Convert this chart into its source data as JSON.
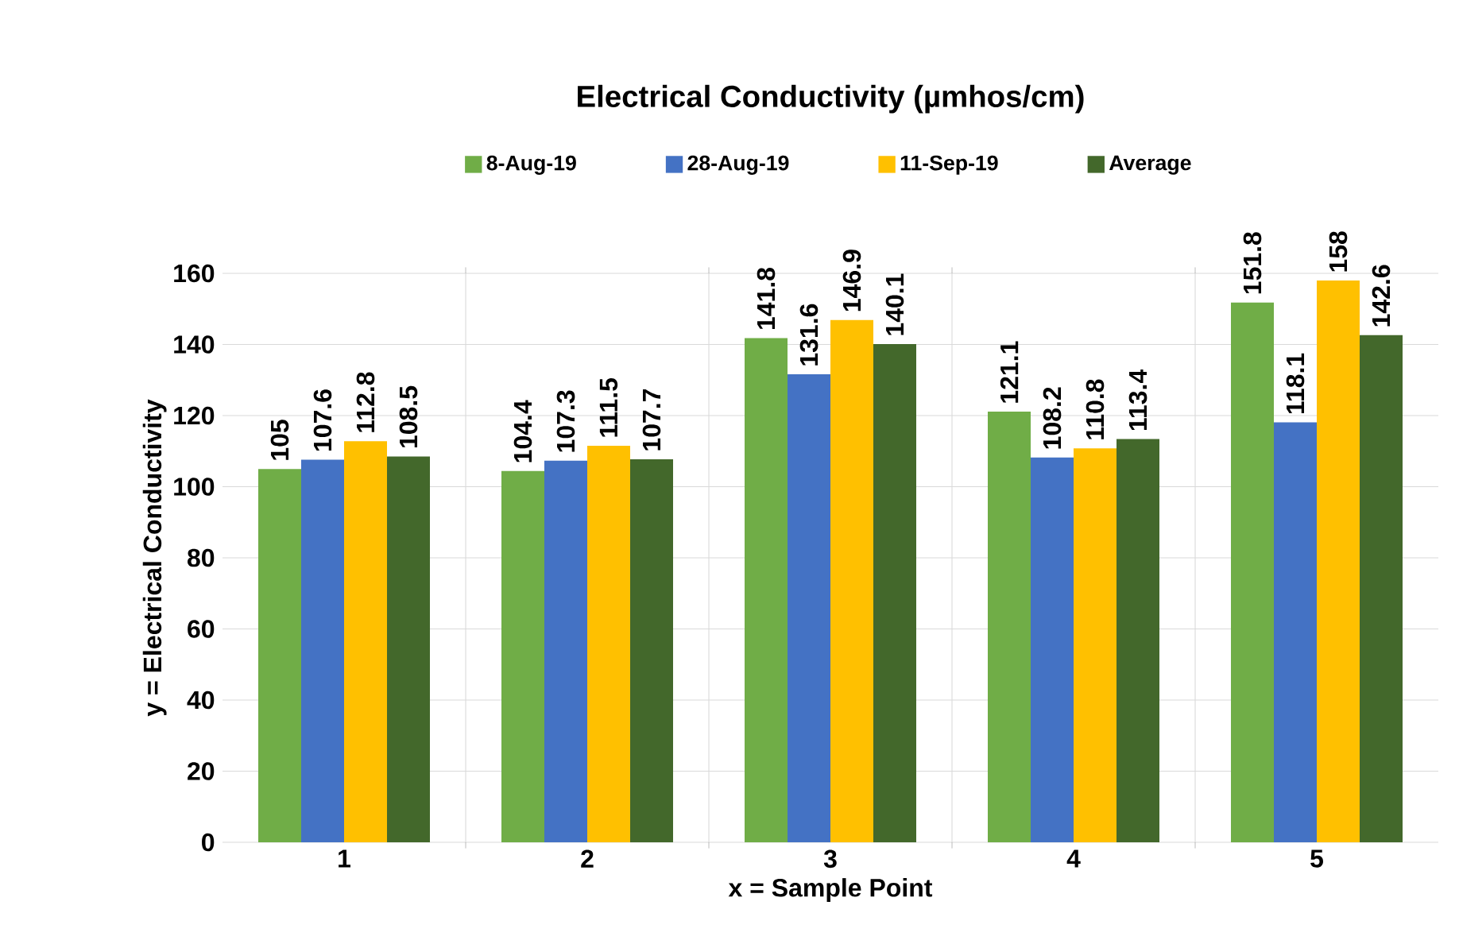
{
  "chart_data": {
    "type": "bar",
    "title": "Electrical Conductivity (µmhos/cm)",
    "xlabel": "x = Sample Point",
    "ylabel": "y = Electrical Conductivity",
    "categories": [
      "1",
      "2",
      "3",
      "4",
      "5"
    ],
    "series": [
      {
        "name": "8-Aug-19",
        "color": "#70ad47",
        "values": [
          105,
          104.4,
          141.8,
          121.1,
          151.8
        ]
      },
      {
        "name": "28-Aug-19",
        "color": "#4472c4",
        "values": [
          107.6,
          107.3,
          131.6,
          108.2,
          118.1
        ]
      },
      {
        "name": "11-Sep-19",
        "color": "#ffc000",
        "values": [
          112.8,
          111.5,
          146.9,
          110.8,
          158
        ]
      },
      {
        "name": "Average",
        "color": "#43682b",
        "values": [
          108.5,
          107.7,
          140.1,
          113.4,
          142.6
        ]
      }
    ],
    "ylim": [
      0,
      160
    ],
    "yticks": [
      0,
      20,
      40,
      60,
      80,
      100,
      120,
      140,
      160
    ],
    "grid": true,
    "legend": "top",
    "data_labels": true
  }
}
